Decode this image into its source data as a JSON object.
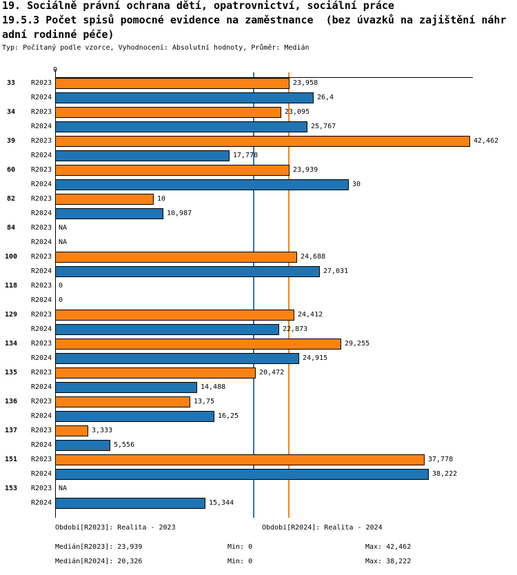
{
  "title": {
    "line1": "19. Sociálně právní ochrana dětí, opatrovnictví, sociální práce",
    "line2": "19.5.3 Počet spisů pomocné evidence na zaměstnance  (bez úvazků na zajištění náhr",
    "line3": "adní rodinné péče)",
    "subtitle": "Typ: Počítaný podle vzorce, Vyhodnocení: Absolutní hodnoty, Průměr: Medián"
  },
  "chart_data": {
    "type": "bar",
    "orientation": "horizontal",
    "axis": {
      "x_min": 0,
      "zero_label": "0",
      "grid": false
    },
    "categories": [
      "33",
      "34",
      "39",
      "60",
      "82",
      "84",
      "100",
      "118",
      "129",
      "134",
      "135",
      "136",
      "137",
      "151",
      "153"
    ],
    "series": [
      {
        "name": "R2023",
        "color": "#fa8214",
        "values": [
          23.958,
          23.095,
          42.462,
          23.939,
          10,
          null,
          24.688,
          0,
          24.412,
          29.255,
          20.472,
          13.75,
          3.333,
          37.778,
          null
        ],
        "labels": [
          "23,958",
          "23,095",
          "42,462",
          "23,939",
          "10",
          "NA",
          "24,688",
          "0",
          "24,412",
          "29,255",
          "20,472",
          "13,75",
          "3,333",
          "37,778",
          "NA"
        ]
      },
      {
        "name": "R2024",
        "color": "#1f74b3",
        "values": [
          26.4,
          25.767,
          17.778,
          30,
          10.987,
          null,
          27.031,
          0,
          22.873,
          24.915,
          14.488,
          16.25,
          5.556,
          38.222,
          15.344
        ],
        "labels": [
          "26,4",
          "25,767",
          "17,778",
          "30",
          "10,987",
          "NA",
          "27,031",
          "0",
          "22,873",
          "24,915",
          "14,488",
          "16,25",
          "5,556",
          "38,222",
          "15,344"
        ]
      }
    ],
    "median_lines": [
      {
        "series": "R2023",
        "value": 23.939,
        "color": "#fb8314"
      },
      {
        "series": "R2024",
        "value": 20.326,
        "color": "#2277b8"
      }
    ],
    "null_display": "NA",
    "legend_position": "none"
  },
  "footer": {
    "period_r2023": "Období[R2023]: Realita - 2023",
    "period_r2024": "Období[R2024]: Realita - 2024",
    "median_r2023": "Medián[R2023]: 23,939",
    "median_r2024": "Medián[R2024]: 20,326",
    "min_r2023": "Min: 0",
    "min_r2024": "Min: 0",
    "max_r2023": "Max: 42,462",
    "max_r2024": "Max: 38,222"
  }
}
